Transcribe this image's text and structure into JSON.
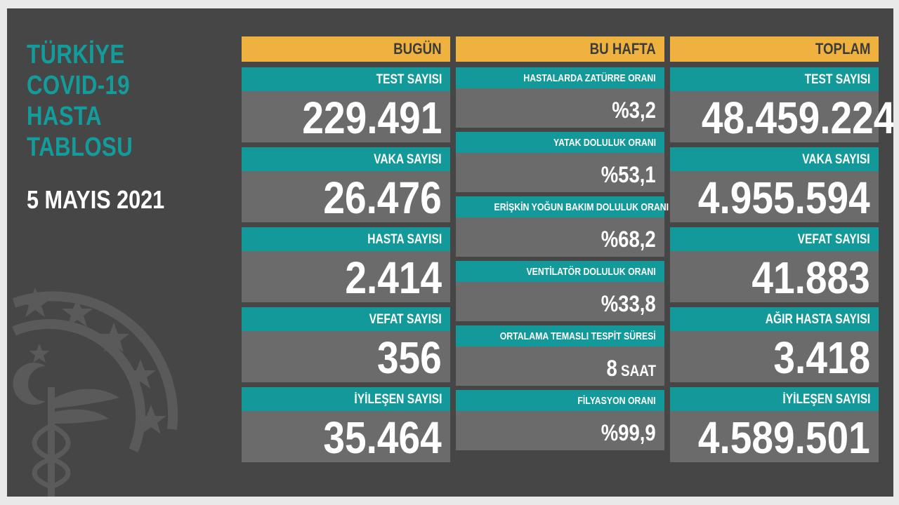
{
  "title_lines": [
    "TÜRKİYE",
    "COVID-19",
    "HASTA",
    "TABLOSU"
  ],
  "date": "5 MAYIS 2021",
  "columns": {
    "today": {
      "header": "BUGÜN",
      "items": [
        {
          "label": "TEST SAYISI",
          "value": "229.491"
        },
        {
          "label": "VAKA SAYISI",
          "value": "26.476"
        },
        {
          "label": "HASTA SAYISI",
          "value": "2.414"
        },
        {
          "label": "VEFAT SAYISI",
          "value": "356"
        },
        {
          "label": "İYİLEŞEN SAYISI",
          "value": "35.464"
        }
      ]
    },
    "week": {
      "header": "BU HAFTA",
      "items": [
        {
          "label": "HASTALARDA ZATÜRRE ORANI",
          "value": "%3,2"
        },
        {
          "label": "YATAK DOLULUK ORANI",
          "value": "%53,1"
        },
        {
          "label": "ERİŞKİN YOĞUN BAKIM DOLULUK ORANI",
          "value": "%68,2"
        },
        {
          "label": "VENTİLATÖR DOLULUK ORANI",
          "value": "%33,8"
        },
        {
          "label": "ORTALAMA TEMASLI TESPİT SÜRESİ",
          "value": "8",
          "unit": "SAAT"
        },
        {
          "label": "FİLYASYON ORANI",
          "value": "%99,9"
        }
      ]
    },
    "total": {
      "header": "TOPLAM",
      "items": [
        {
          "label": "TEST SAYISI",
          "value": "48.459.224"
        },
        {
          "label": "VAKA SAYISI",
          "value": "4.955.594"
        },
        {
          "label": "VEFAT SAYISI",
          "value": "41.883"
        },
        {
          "label": "AĞIR HASTA SAYISI",
          "value": "3.418"
        },
        {
          "label": "İYİLEŞEN SAYISI",
          "value": "4.589.501"
        }
      ]
    }
  },
  "colors": {
    "background": "#464646",
    "teal": "#13999a",
    "header_orange": "#f0b23f",
    "value_box": "#6b6b6b"
  },
  "emblem_icon": "ministry-of-health-emblem-icon"
}
